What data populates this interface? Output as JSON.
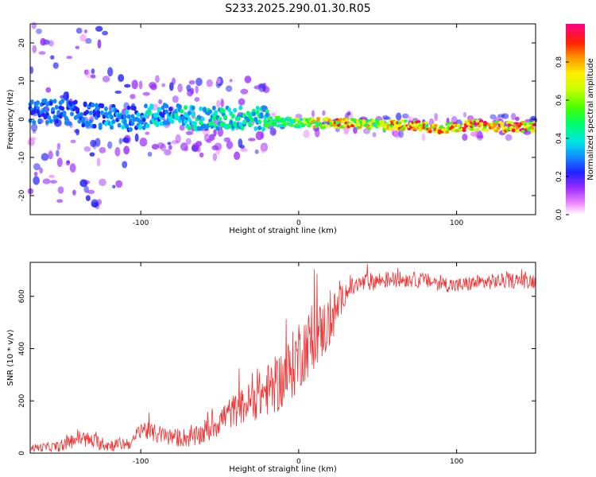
{
  "title": "S233.2025.290.01.30.R05",
  "chart_data": [
    {
      "type": "heatmap",
      "xlabel": "Height of straight line (km)",
      "ylabel": "Frequency (Hz)",
      "xlim": [
        -170,
        150
      ],
      "ylim": [
        -25,
        25
      ],
      "xticks": [
        -100,
        0,
        100
      ],
      "yticks": [
        -20,
        -10,
        0,
        10,
        20
      ],
      "colorbar": {
        "label": "Normalized spectral amplitude",
        "range": [
          0.0,
          1.0
        ],
        "ticks": [
          0.0,
          0.2,
          0.4,
          0.6,
          0.8
        ]
      },
      "description_ridge": {
        "x": [
          -150,
          -130,
          -110,
          -90,
          -70,
          -50,
          -30,
          -15,
          0,
          10,
          30,
          50,
          70,
          90,
          110,
          130,
          150
        ],
        "center_freq_hz": [
          2,
          1,
          0,
          1,
          0.5,
          0,
          0.5,
          -0.5,
          -1,
          -1,
          -1,
          -1.5,
          -1.5,
          -2.5,
          -1.5,
          -2,
          -2
        ],
        "peak_amplitude": [
          0.3,
          0.3,
          0.35,
          0.4,
          0.4,
          0.45,
          0.45,
          0.55,
          0.6,
          0.8,
          0.95,
          0.7,
          1.0,
          0.9,
          1.0,
          0.95,
          0.95
        ]
      }
    },
    {
      "type": "line",
      "xlabel": "Height of straight line (km)",
      "ylabel": "SNR (10 * v/v)",
      "xlim": [
        -170,
        150
      ],
      "ylim": [
        0,
        730
      ],
      "xticks": [
        -100,
        0,
        100
      ],
      "yticks": [
        0,
        200,
        400,
        600
      ],
      "series": [
        {
          "name": "SNR",
          "color": "#ee3333",
          "x": [
            -170,
            -150,
            -140,
            -120,
            -105,
            -100,
            -95,
            -80,
            -65,
            -55,
            -45,
            -35,
            -25,
            -15,
            -10,
            -5,
            0,
            10,
            20,
            25,
            30,
            40,
            50,
            60,
            70,
            80,
            90,
            100,
            110,
            120,
            130,
            140,
            150
          ],
          "y": [
            20,
            25,
            60,
            30,
            40,
            100,
            80,
            60,
            60,
            100,
            150,
            180,
            220,
            260,
            280,
            320,
            380,
            440,
            500,
            560,
            620,
            650,
            660,
            665,
            665,
            660,
            650,
            640,
            650,
            655,
            660,
            660,
            660
          ],
          "jitter": [
            15,
            20,
            35,
            25,
            25,
            40,
            35,
            35,
            40,
            55,
            60,
            70,
            90,
            110,
            120,
            130,
            140,
            120,
            110,
            70,
            40,
            35,
            35,
            30,
            30,
            30,
            30,
            30,
            30,
            30,
            30,
            30,
            30
          ]
        }
      ]
    }
  ]
}
